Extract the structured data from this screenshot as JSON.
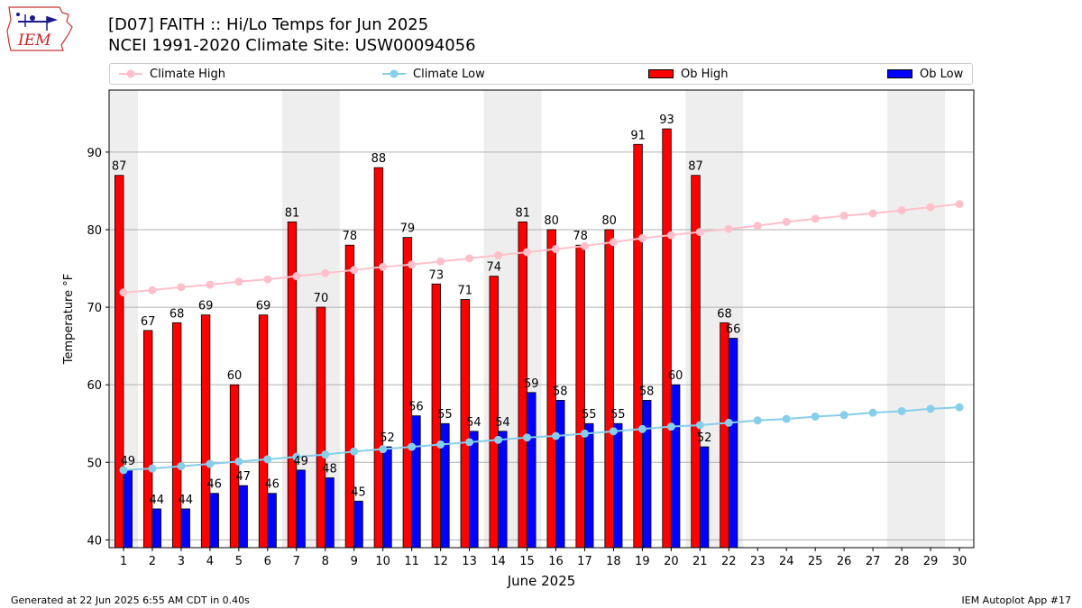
{
  "title_line1": "[D07] FAITH :: Hi/Lo Temps for Jun 2025",
  "title_line2": "NCEI 1991-2020 Climate Site: USW00094056",
  "logo_text": "IEM",
  "legend": {
    "climate_high": "Climate High",
    "climate_low": "Climate Low",
    "ob_high": "Ob High",
    "ob_low": "Ob Low"
  },
  "footer_left": "Generated at 22 Jun 2025 6:55 AM CDT in 0.40s",
  "footer_right": "IEM Autoplot App #17",
  "colors": {
    "ob_high": "#ff0000",
    "ob_low": "#0000ff",
    "climate_high": "#ffc0cb",
    "climate_low": "#87ceeb",
    "weekend_band": "#eeeeee",
    "grid": "#b0b0b0"
  },
  "chart_data": {
    "type": "bar",
    "xlabel": "June 2025",
    "ylabel": "Temperature °F",
    "xlim": [
      0.5,
      30.5
    ],
    "ylim": [
      39,
      98
    ],
    "yticks": [
      40,
      50,
      60,
      70,
      80,
      90
    ],
    "grid": "horizontal",
    "legend_position": "top",
    "days": [
      1,
      2,
      3,
      4,
      5,
      6,
      7,
      8,
      9,
      10,
      11,
      12,
      13,
      14,
      15,
      16,
      17,
      18,
      19,
      20,
      21,
      22,
      23,
      24,
      25,
      26,
      27,
      28,
      29,
      30
    ],
    "weekend_days": [
      1,
      7,
      8,
      14,
      15,
      21,
      22,
      28,
      29
    ],
    "series": [
      {
        "name": "Ob High",
        "type": "bar",
        "values": [
          87,
          67,
          68,
          69,
          60,
          69,
          81,
          70,
          78,
          88,
          79,
          73,
          71,
          74,
          81,
          80,
          78,
          80,
          91,
          93,
          87,
          68
        ]
      },
      {
        "name": "Ob Low",
        "type": "bar",
        "values": [
          49,
          44,
          44,
          46,
          47,
          46,
          49,
          48,
          45,
          52,
          56,
          55,
          54,
          54,
          59,
          58,
          55,
          55,
          58,
          60,
          52,
          66
        ]
      },
      {
        "name": "Climate High",
        "type": "line",
        "values": [
          71.9,
          72.2,
          72.6,
          72.9,
          73.3,
          73.6,
          74.0,
          74.4,
          74.8,
          75.2,
          75.5,
          75.9,
          76.3,
          76.7,
          77.1,
          77.5,
          77.9,
          78.4,
          78.9,
          79.3,
          79.7,
          80.1,
          80.5,
          81.0,
          81.4,
          81.8,
          82.1,
          82.5,
          82.9,
          83.3
        ]
      },
      {
        "name": "Climate Low",
        "type": "line",
        "values": [
          49.0,
          49.2,
          49.5,
          49.8,
          50.1,
          50.4,
          50.7,
          51.0,
          51.4,
          51.7,
          52.0,
          52.3,
          52.6,
          52.9,
          53.2,
          53.4,
          53.7,
          54.0,
          54.3,
          54.6,
          54.8,
          55.1,
          55.4,
          55.6,
          55.9,
          56.1,
          56.4,
          56.6,
          56.9,
          57.1
        ]
      }
    ]
  }
}
